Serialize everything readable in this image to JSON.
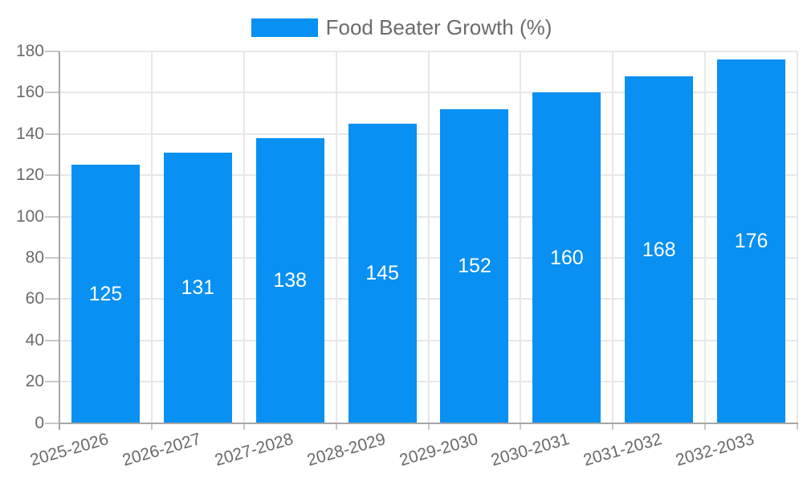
{
  "legend": {
    "label": "Food Beater Growth (%)"
  },
  "chart_data": {
    "type": "bar",
    "title": "",
    "series": [
      {
        "name": "Food Beater Growth (%)",
        "values": [
          125,
          131,
          138,
          145,
          152,
          160,
          168,
          176
        ]
      }
    ],
    "categories": [
      "2025-2026",
      "2026-2027",
      "2027-2028",
      "2028-2029",
      "2029-2030",
      "2030-2031",
      "2031-2032",
      "2032-2033"
    ],
    "values": [
      125,
      131,
      138,
      145,
      152,
      160,
      168,
      176
    ],
    "yticks": [
      0,
      20,
      40,
      60,
      80,
      100,
      120,
      140,
      160,
      180
    ],
    "ylim": [
      0,
      180
    ],
    "xlabel": "",
    "ylabel": "",
    "grid": true,
    "legend_position": "top",
    "bar_value_labels": true,
    "xlabel_rotation_deg": -16
  },
  "colors": {
    "bar": "#0890f2",
    "gridline": "#e7e7e7",
    "axis_line": "#a6a6a6",
    "tick": "#c9c9c9",
    "axis_text": "#6b6b6b",
    "value_label": "#ffffff",
    "background": "#ffffff"
  }
}
